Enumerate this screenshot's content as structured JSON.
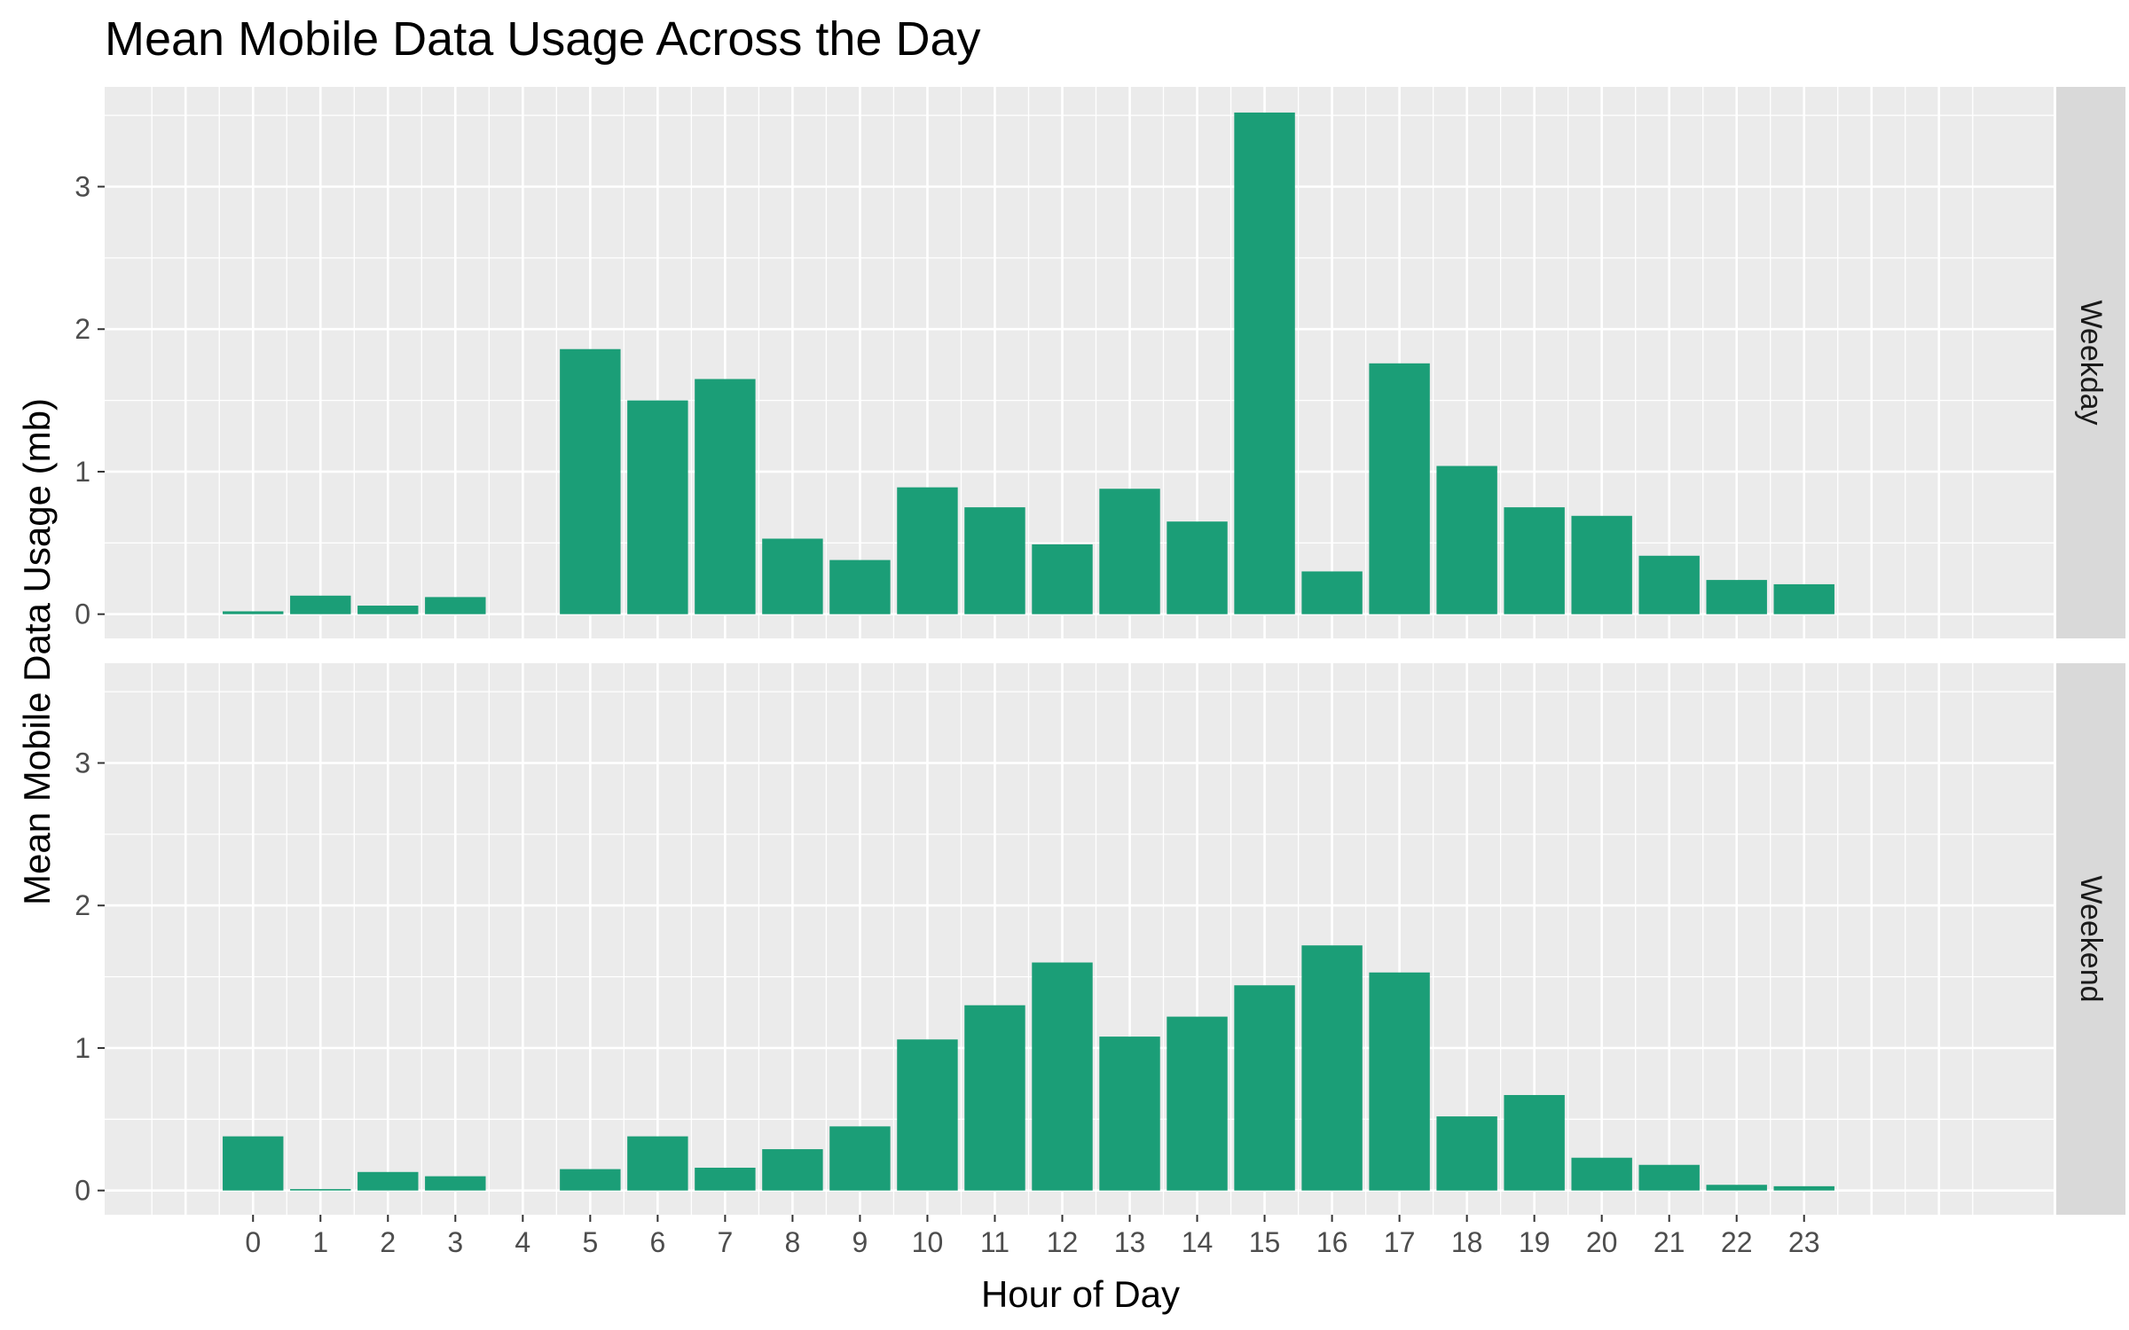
{
  "chart_data": {
    "type": "bar",
    "title": "Mean Mobile Data Usage Across the Day",
    "xlabel": "Hour of Day",
    "ylabel": "Mean Mobile Data Usage (mb)",
    "categories": [
      "0",
      "1",
      "2",
      "3",
      "4",
      "5",
      "6",
      "7",
      "8",
      "9",
      "10",
      "11",
      "12",
      "13",
      "14",
      "15",
      "16",
      "17",
      "18",
      "19",
      "20",
      "21",
      "22",
      "23"
    ],
    "xlim": [
      -2.2,
      26.7
    ],
    "ylim": [
      -0.17,
      3.7
    ],
    "yticks": [
      0,
      1,
      2,
      3
    ],
    "ytick_labels": [
      "0",
      "1",
      "2",
      "3"
    ],
    "grid": true,
    "bar_color": "#1b9e77",
    "panel_background": "#ebebeb",
    "strip_background": "#d9d9d9",
    "facets": [
      {
        "name": "Weekday",
        "values": [
          0.02,
          0.13,
          0.06,
          0.12,
          0.0,
          1.86,
          1.5,
          1.65,
          0.53,
          0.38,
          0.89,
          0.75,
          0.49,
          0.88,
          0.65,
          3.52,
          0.3,
          1.76,
          1.04,
          0.75,
          0.69,
          0.41,
          0.24,
          0.21
        ]
      },
      {
        "name": "Weekend",
        "values": [
          0.38,
          0.01,
          0.13,
          0.1,
          0.0,
          0.15,
          0.38,
          0.16,
          0.29,
          0.45,
          1.06,
          1.3,
          1.6,
          1.08,
          1.22,
          1.44,
          1.72,
          1.53,
          0.52,
          0.67,
          0.23,
          0.18,
          0.04,
          0.03
        ]
      }
    ]
  }
}
